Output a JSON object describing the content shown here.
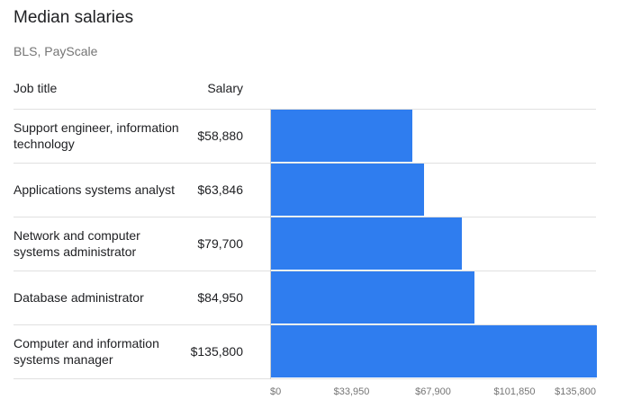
{
  "header": {
    "title": "Median salaries",
    "source": "BLS, PayScale",
    "col_job": "Job title",
    "col_salary": "Salary"
  },
  "colors": {
    "bar": "#2f7def",
    "grid": "#e0e0e0"
  },
  "chart_data": {
    "type": "bar",
    "orientation": "horizontal",
    "title": "Median salaries",
    "subtitle": "BLS, PayScale",
    "xlabel": "",
    "ylabel": "",
    "xlim": [
      0,
      135800
    ],
    "categories": [
      "Support engineer, information technology",
      "Applications systems analyst",
      "Network and computer systems administrator",
      "Database administrator",
      "Computer and information systems manager"
    ],
    "values": [
      58880,
      63846,
      79700,
      84950,
      135800
    ],
    "value_labels": [
      "$58,880",
      "$63,846",
      "$79,700",
      "$84,950",
      "$135,800"
    ],
    "x_ticks": [
      0,
      33950,
      67900,
      101850,
      135800
    ],
    "x_tick_labels": [
      "$0",
      "$33,950",
      "$67,900",
      "$101,850",
      "$135,800"
    ],
    "grid": true,
    "legend": "none"
  }
}
